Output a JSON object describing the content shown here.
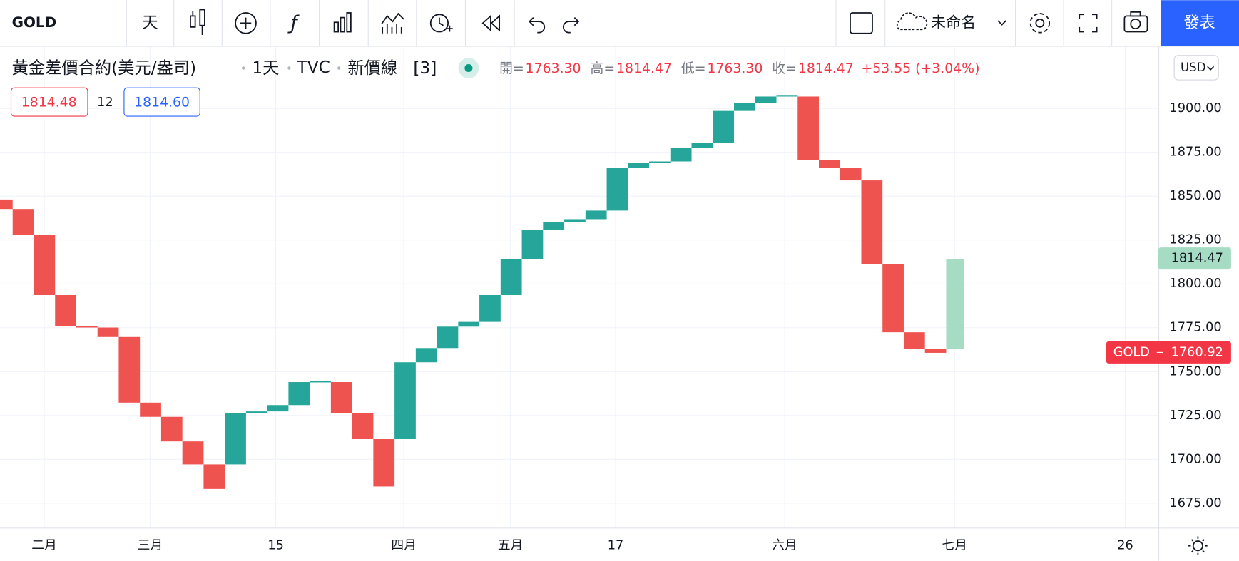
{
  "toolbar": {
    "symbol": "GOLD",
    "interval": "天",
    "layout_name": "未命名",
    "publish": "發表"
  },
  "legend": {
    "symbol_name": "黃金差價合約(美元/盎司)",
    "interval": "1天",
    "exchange": "TVC",
    "chart_style": "新價線",
    "line_count": "[3]",
    "open_label": "開=",
    "open": "1763.30",
    "high_label": "高=",
    "high": "1814.47",
    "low_label": "低=",
    "low": "1763.30",
    "close_label": "收=",
    "close": "1814.47",
    "change": "+53.55 (+3.04%)"
  },
  "quote": {
    "bid": "1814.48",
    "spread": "12",
    "ask": "1814.60"
  },
  "currency": "USD",
  "chart_data": {
    "type": "three_line_break",
    "up_color": "#26a69a",
    "down_color": "#ef5350",
    "opens": [
      1848.1,
      1842.7,
      1827.9,
      1793.6,
      1776.0,
      1775.1,
      1769.7,
      1732.3,
      1724.2,
      1710.2,
      1697.1,
      1697.1,
      1726.4,
      1727.3,
      1730.9,
      1744.0,
      1744.0,
      1726.4,
      1711.5,
      1711.5,
      1755.3,
      1763.4,
      1775.6,
      1778.3,
      1793.6,
      1814.3,
      1830.6,
      1835.1,
      1836.9,
      1841.8,
      1866.2,
      1868.9,
      1869.8,
      1877.5,
      1880.2,
      1898.6,
      1903.2,
      1906.8,
      1906.8,
      1870.7,
      1866.2,
      1859.0,
      1811.2,
      1772.4,
      1762.9
    ],
    "closes": [
      1842.7,
      1827.9,
      1793.6,
      1776.0,
      1775.1,
      1769.7,
      1732.3,
      1724.2,
      1710.2,
      1697.1,
      1683.1,
      1726.4,
      1727.3,
      1730.9,
      1744.0,
      1744.5,
      1726.4,
      1711.5,
      1684.5,
      1755.3,
      1763.4,
      1775.6,
      1778.3,
      1793.6,
      1814.3,
      1830.6,
      1835.1,
      1836.9,
      1841.8,
      1866.2,
      1868.9,
      1869.8,
      1877.5,
      1880.2,
      1898.6,
      1903.2,
      1906.8,
      1907.7,
      1870.7,
      1866.2,
      1859.0,
      1811.2,
      1772.4,
      1762.9,
      1760.7
    ],
    "pending": {
      "open": 1762.9,
      "close": 1814.3,
      "color": "#a5dcc3"
    },
    "ylim": [
      1661.0,
      1935.2
    ],
    "yticks": [
      {
        "value": 1675,
        "label": "1675.00"
      },
      {
        "value": 1700,
        "label": "1700.00"
      },
      {
        "value": 1725,
        "label": "1725.00"
      },
      {
        "value": 1750,
        "label": "1750.00"
      },
      {
        "value": 1775,
        "label": "1775.00"
      },
      {
        "value": 1800,
        "label": "1800.00"
      },
      {
        "value": 1825,
        "label": "1825.00"
      },
      {
        "value": 1850,
        "label": "1850.00"
      },
      {
        "value": 1875,
        "label": "1875.00"
      },
      {
        "value": 1900,
        "label": "1900.00"
      }
    ],
    "x_labels": [
      "二月",
      "三月",
      "15",
      "四月",
      "五月",
      "17",
      "六月",
      "七月",
      "26"
    ],
    "price_tags": [
      {
        "value": 1814.47,
        "color": "#a5dcc3",
        "text_color": "#131722"
      },
      {
        "name": "GOLD",
        "value": 1760.92,
        "color": "#f23645",
        "text_color": "#ffffff"
      }
    ],
    "grid": true
  }
}
